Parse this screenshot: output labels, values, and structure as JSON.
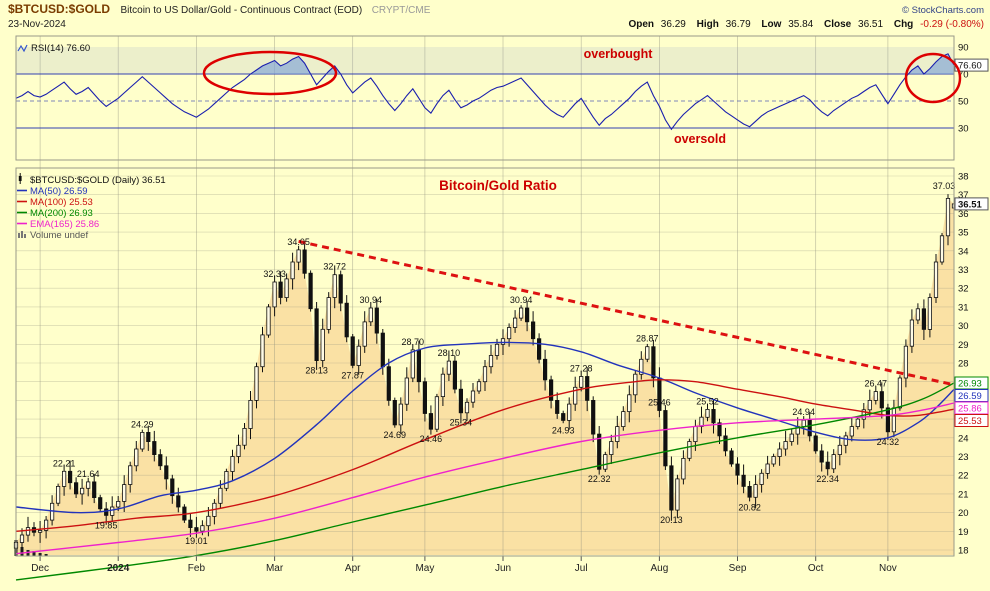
{
  "header": {
    "symbol": "$BTCUSD:$GOLD",
    "description": "Bitcoin to US Dollar/Gold - Continuous Contract (EOD)",
    "exchange": "CRYPT/CME",
    "credit": "© StockCharts.com",
    "date": "23-Nov-2024",
    "quote": {
      "open_l": "Open",
      "open_v": "36.29",
      "high_l": "High",
      "high_v": "36.79",
      "low_l": "Low",
      "low_v": "35.84",
      "close_l": "Close",
      "close_v": "36.51",
      "chg_l": "Chg",
      "chg_v": "-0.29 (-0.80%)"
    }
  },
  "rsi_legend": {
    "label": "RSI(14) 76.60"
  },
  "main_legend": {
    "title": "$BTCUSD:$GOLD (Daily) 36.51",
    "items": [
      {
        "label": "MA(50) 26.59",
        "color": "#2233bb"
      },
      {
        "label": "MA(100) 25.53",
        "color": "#cc1111"
      },
      {
        "label": "MA(200) 26.93",
        "color": "#008800"
      },
      {
        "label": "EMA(165) 25.86",
        "color": "#ee22cc"
      }
    ],
    "volume_label": "Volume undef"
  },
  "annotations": {
    "ratio_title": "Bitcoin/Gold Ratio",
    "overbought": "overbought",
    "oversold": "oversold"
  },
  "chart_data": [
    {
      "type": "line",
      "title": "RSI(14)",
      "last_value": 76.6,
      "y_ticks": [
        90,
        70,
        50,
        30
      ],
      "overbought_level": 70,
      "oversold_level": 30,
      "midline": 50,
      "last_box": "76.60",
      "values": [
        52,
        54,
        57,
        54,
        53,
        55,
        58,
        61,
        64,
        59,
        55,
        57,
        60,
        55,
        50,
        46,
        49,
        52,
        56,
        60,
        64,
        68,
        64,
        60,
        56,
        52,
        48,
        45,
        42,
        40,
        38,
        41,
        44,
        48,
        52,
        56,
        60,
        63,
        66,
        70,
        73,
        76,
        78,
        80,
        76,
        78,
        81,
        83,
        78,
        70,
        62,
        67,
        72,
        76,
        70,
        62,
        56,
        60,
        64,
        67,
        61,
        54,
        48,
        43,
        48,
        54,
        59,
        52,
        45,
        41,
        48,
        54,
        58,
        51,
        45,
        47,
        50,
        52,
        55,
        58,
        60,
        61,
        63,
        65,
        67,
        62,
        57,
        52,
        47,
        43,
        40,
        38,
        43,
        48,
        52,
        45,
        38,
        32,
        37,
        40,
        44,
        48,
        52,
        57,
        61,
        64,
        54,
        46,
        36,
        29,
        35,
        40,
        44,
        48,
        51,
        54,
        50,
        46,
        42,
        39,
        36,
        33,
        31,
        35,
        39,
        42,
        44,
        46,
        48,
        50,
        52,
        54,
        51,
        46,
        42,
        39,
        43,
        46,
        49,
        52,
        54,
        57,
        60,
        62,
        55,
        48,
        55,
        62,
        68,
        73,
        76,
        70,
        74,
        79,
        83,
        85,
        76.6
      ]
    },
    {
      "type": "candlestick",
      "title": "Bitcoin/Gold Ratio",
      "y_ticks": [
        38,
        37,
        36,
        35,
        34,
        33,
        32,
        31,
        30,
        29,
        28,
        27,
        26,
        25,
        24,
        23,
        22,
        21,
        20,
        19,
        18
      ],
      "x_ticks": [
        {
          "i": 4,
          "label": "Dec"
        },
        {
          "i": 17,
          "label": "2024",
          "bold": true
        },
        {
          "i": 30,
          "label": "Feb"
        },
        {
          "i": 43,
          "label": "Mar"
        },
        {
          "i": 56,
          "label": "Apr"
        },
        {
          "i": 68,
          "label": "May"
        },
        {
          "i": 81,
          "label": "Jun"
        },
        {
          "i": 94,
          "label": "Jul"
        },
        {
          "i": 107,
          "label": "Aug"
        },
        {
          "i": 120,
          "label": "Sep"
        },
        {
          "i": 133,
          "label": "Oct"
        },
        {
          "i": 145,
          "label": "Nov"
        }
      ],
      "close": [
        18.4,
        18.8,
        19.2,
        18.95,
        19.05,
        19.6,
        20.5,
        21.4,
        22.21,
        21.6,
        21.0,
        21.3,
        21.64,
        20.8,
        20.2,
        19.85,
        20.3,
        20.6,
        21.5,
        22.5,
        23.4,
        24.29,
        23.8,
        23.1,
        22.5,
        21.8,
        20.9,
        20.3,
        19.6,
        19.2,
        19.01,
        19.3,
        19.8,
        20.5,
        21.3,
        22.2,
        23.0,
        23.6,
        24.5,
        26.0,
        27.8,
        29.5,
        31.0,
        32.33,
        31.5,
        32.5,
        33.4,
        34.05,
        32.8,
        30.9,
        28.13,
        29.8,
        31.5,
        32.72,
        31.2,
        29.4,
        27.87,
        28.9,
        30.2,
        30.94,
        29.6,
        27.8,
        26.0,
        24.69,
        25.8,
        27.2,
        28.7,
        27.0,
        25.3,
        24.46,
        26.2,
        27.4,
        28.1,
        26.6,
        25.34,
        25.9,
        26.5,
        27.0,
        27.8,
        28.4,
        29.0,
        29.3,
        29.9,
        30.4,
        30.94,
        30.2,
        29.3,
        28.2,
        27.1,
        26.0,
        25.3,
        24.93,
        25.8,
        26.7,
        27.28,
        26.0,
        24.2,
        22.32,
        23.1,
        23.8,
        24.6,
        25.4,
        26.3,
        27.4,
        28.2,
        28.87,
        27.2,
        25.46,
        22.5,
        20.13,
        21.8,
        22.9,
        23.8,
        24.6,
        25.1,
        25.52,
        24.8,
        24.1,
        23.3,
        22.6,
        22.0,
        21.4,
        20.82,
        21.5,
        22.1,
        22.6,
        23.0,
        23.4,
        23.8,
        24.2,
        24.6,
        24.94,
        24.1,
        23.3,
        22.7,
        22.34,
        23.1,
        23.6,
        24.1,
        24.6,
        25.0,
        25.5,
        26.0,
        26.47,
        25.6,
        24.32,
        25.6,
        27.2,
        28.9,
        30.3,
        30.9,
        29.8,
        31.5,
        33.4,
        34.8,
        36.8,
        36.51
      ],
      "special_highs": {
        "155": 37.03
      },
      "last_candle": {
        "open": 36.29,
        "high": 36.79,
        "low": 35.84,
        "close": 36.51
      },
      "ma_overlays": [
        {
          "name": "MA(50)",
          "value": 26.59,
          "color": "#2233bb",
          "points": [
            [
              0,
              20.3
            ],
            [
              10,
              20.0
            ],
            [
              17,
              20.2
            ],
            [
              24,
              20.9
            ],
            [
              30,
              21.2
            ],
            [
              36,
              21.7
            ],
            [
              43,
              22.9
            ],
            [
              50,
              24.7
            ],
            [
              56,
              26.5
            ],
            [
              62,
              28.0
            ],
            [
              68,
              28.8
            ],
            [
              74,
              29.0
            ],
            [
              81,
              29.1
            ],
            [
              88,
              29.0
            ],
            [
              94,
              28.6
            ],
            [
              100,
              27.9
            ],
            [
              107,
              27.2
            ],
            [
              113,
              26.4
            ],
            [
              120,
              25.6
            ],
            [
              127,
              24.9
            ],
            [
              133,
              24.3
            ],
            [
              139,
              23.9
            ],
            [
              145,
              24.0
            ],
            [
              150,
              24.8
            ],
            [
              153,
              25.6
            ],
            [
              156,
              26.59
            ]
          ]
        },
        {
          "name": "MA(100)",
          "value": 25.53,
          "color": "#cc1111",
          "points": [
            [
              0,
              19.0
            ],
            [
              10,
              19.3
            ],
            [
              20,
              19.7
            ],
            [
              30,
              20.0
            ],
            [
              43,
              20.9
            ],
            [
              56,
              22.3
            ],
            [
              68,
              23.9
            ],
            [
              81,
              25.5
            ],
            [
              94,
              26.6
            ],
            [
              103,
              27.0
            ],
            [
              107,
              27.1
            ],
            [
              113,
              27.0
            ],
            [
              120,
              26.6
            ],
            [
              127,
              26.2
            ],
            [
              133,
              25.8
            ],
            [
              139,
              25.5
            ],
            [
              145,
              25.2
            ],
            [
              150,
              25.2
            ],
            [
              156,
              25.53
            ]
          ]
        },
        {
          "name": "MA(200)",
          "value": 26.93,
          "color": "#008800",
          "points": [
            [
              0,
              16.4
            ],
            [
              17,
              17.1
            ],
            [
              30,
              17.7
            ],
            [
              43,
              18.5
            ],
            [
              56,
              19.5
            ],
            [
              68,
              20.4
            ],
            [
              81,
              21.4
            ],
            [
              94,
              22.3
            ],
            [
              107,
              23.2
            ],
            [
              120,
              24.0
            ],
            [
              133,
              24.7
            ],
            [
              145,
              25.5
            ],
            [
              151,
              26.1
            ],
            [
              156,
              26.93
            ]
          ]
        },
        {
          "name": "EMA(165)",
          "value": 25.86,
          "color": "#ee22cc",
          "points": [
            [
              0,
              17.8
            ],
            [
              17,
              18.4
            ],
            [
              30,
              18.9
            ],
            [
              43,
              19.7
            ],
            [
              56,
              20.8
            ],
            [
              68,
              21.9
            ],
            [
              81,
              22.9
            ],
            [
              94,
              23.8
            ],
            [
              107,
              24.4
            ],
            [
              120,
              24.8
            ],
            [
              133,
              25.0
            ],
            [
              145,
              25.2
            ],
            [
              151,
              25.5
            ],
            [
              156,
              25.86
            ]
          ]
        }
      ],
      "trendline": {
        "i1": 47,
        "v1": 34.5,
        "i2": 157,
        "v2": 26.8,
        "color": "#dd1111"
      },
      "price_labels": [
        {
          "i": 8,
          "v": 22.21,
          "text": "22.21",
          "side": "above"
        },
        {
          "i": 12,
          "v": 21.64,
          "text": "21.64",
          "side": "above"
        },
        {
          "i": 15,
          "v": 19.85,
          "text": "19.85",
          "side": "below"
        },
        {
          "i": 21,
          "v": 24.29,
          "text": "24.29",
          "side": "above"
        },
        {
          "i": 30,
          "v": 19.01,
          "text": "19.01",
          "side": "below"
        },
        {
          "i": 43,
          "v": 32.33,
          "text": "32.33",
          "side": "above"
        },
        {
          "i": 47,
          "v": 34.05,
          "text": "34.05",
          "side": "above"
        },
        {
          "i": 50,
          "v": 28.13,
          "text": "28.13",
          "side": "below"
        },
        {
          "i": 53,
          "v": 32.72,
          "text": "32.72",
          "side": "above"
        },
        {
          "i": 56,
          "v": 27.87,
          "text": "27.87",
          "side": "below"
        },
        {
          "i": 59,
          "v": 30.94,
          "text": "30.94",
          "side": "above"
        },
        {
          "i": 63,
          "v": 24.69,
          "text": "24.69",
          "side": "below"
        },
        {
          "i": 66,
          "v": 28.7,
          "text": "28.70",
          "side": "above"
        },
        {
          "i": 69,
          "v": 24.46,
          "text": "24.46",
          "side": "below"
        },
        {
          "i": 72,
          "v": 28.1,
          "text": "28.10",
          "side": "above"
        },
        {
          "i": 74,
          "v": 25.34,
          "text": "25.34",
          "side": "below"
        },
        {
          "i": 84,
          "v": 30.94,
          "text": "30.94",
          "side": "above"
        },
        {
          "i": 91,
          "v": 24.93,
          "text": "24.93",
          "side": "below"
        },
        {
          "i": 94,
          "v": 27.28,
          "text": "27.28",
          "side": "above"
        },
        {
          "i": 97,
          "v": 22.32,
          "text": "22.32",
          "side": "below"
        },
        {
          "i": 105,
          "v": 28.87,
          "text": "28.87",
          "side": "above"
        },
        {
          "i": 107,
          "v": 25.46,
          "text": "25.46",
          "side": "above"
        },
        {
          "i": 109,
          "v": 20.13,
          "text": "20.13",
          "side": "below"
        },
        {
          "i": 115,
          "v": 25.52,
          "text": "25.52",
          "side": "above"
        },
        {
          "i": 122,
          "v": 20.82,
          "text": "20.82",
          "side": "below"
        },
        {
          "i": 131,
          "v": 24.94,
          "text": "24.94",
          "side": "above"
        },
        {
          "i": 135,
          "v": 22.34,
          "text": "22.34",
          "side": "below"
        },
        {
          "i": 143,
          "v": 26.47,
          "text": "26.47",
          "side": "above"
        },
        {
          "i": 145,
          "v": 24.32,
          "text": "24.32",
          "side": "below"
        },
        {
          "i": 155,
          "v": 37.03,
          "text": "37.03",
          "side": "above"
        }
      ],
      "axis_boxes": [
        {
          "text": "36.51",
          "v": 36.51,
          "color": "#111111",
          "border": "#555555"
        },
        {
          "text": "26.93",
          "v": 26.93,
          "color": "#008800"
        },
        {
          "text": "26.59",
          "v": 26.59,
          "color": "#2233bb"
        },
        {
          "text": "25.86",
          "v": 25.86,
          "color": "#ee22cc"
        },
        {
          "text": "25.53",
          "v": 25.53,
          "color": "#cc1111"
        }
      ],
      "volume_stub": [
        16,
        9,
        6,
        5,
        3,
        2
      ]
    }
  ]
}
